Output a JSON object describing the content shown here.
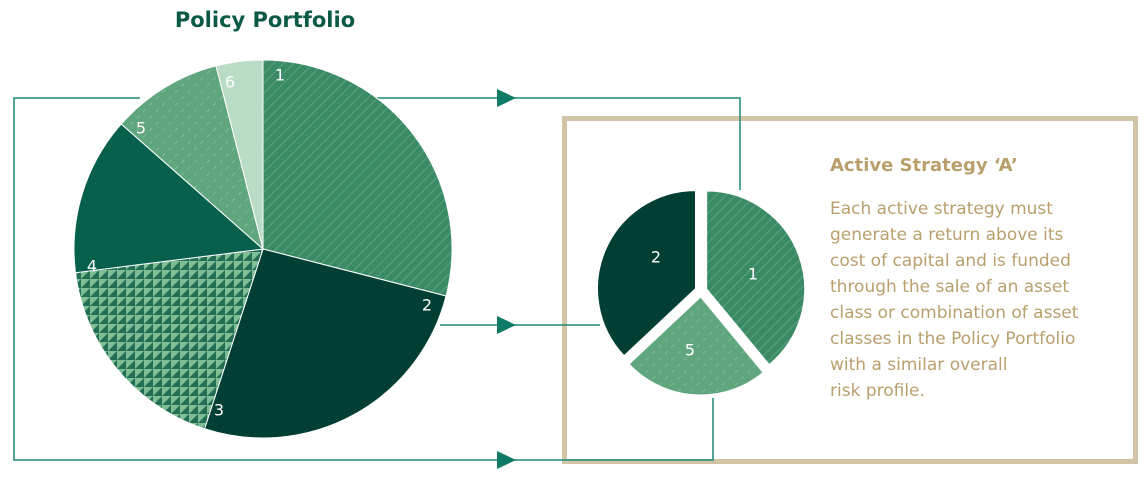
{
  "policy_portfolio": {
    "title": "Policy Portfolio",
    "slices": [
      {
        "label": "1",
        "share": 0.29,
        "pattern": "hatch",
        "color": "#3a8a66"
      },
      {
        "label": "2",
        "share": 0.26,
        "pattern": "solid",
        "color": "#013f35"
      },
      {
        "label": "3",
        "share": 0.18,
        "pattern": "triangles",
        "color": "#3a8a66"
      },
      {
        "label": "4",
        "share": 0.135,
        "pattern": "solid",
        "color": "#07604c"
      },
      {
        "label": "5",
        "share": 0.095,
        "pattern": "dash",
        "color": "#5fa57e"
      },
      {
        "label": "6",
        "share": 0.04,
        "pattern": "solid",
        "color": "#b9dcc6"
      }
    ]
  },
  "active_strategy": {
    "title": "Active Strategy ‘A’",
    "body": "Each active strategy must\ngenerate a return above its\ncost of capital and is funded\nthrough the sale of an asset\nclass or combination of asset\nclasses in the Policy Portfolio\nwith a similar overall\nrisk profile.",
    "slices": [
      {
        "label": "1",
        "share": 0.39,
        "pattern": "hatch",
        "color": "#3a8a66"
      },
      {
        "label": "5",
        "share": 0.24,
        "pattern": "dash",
        "color": "#5fa57e"
      },
      {
        "label": "2",
        "share": 0.37,
        "pattern": "solid",
        "color": "#013f35"
      }
    ]
  },
  "colors": {
    "connector": "#1b8a76",
    "box_border": "#d2c4a6",
    "text_gold": "#b99f6c",
    "title_green": "#0b5a45"
  }
}
